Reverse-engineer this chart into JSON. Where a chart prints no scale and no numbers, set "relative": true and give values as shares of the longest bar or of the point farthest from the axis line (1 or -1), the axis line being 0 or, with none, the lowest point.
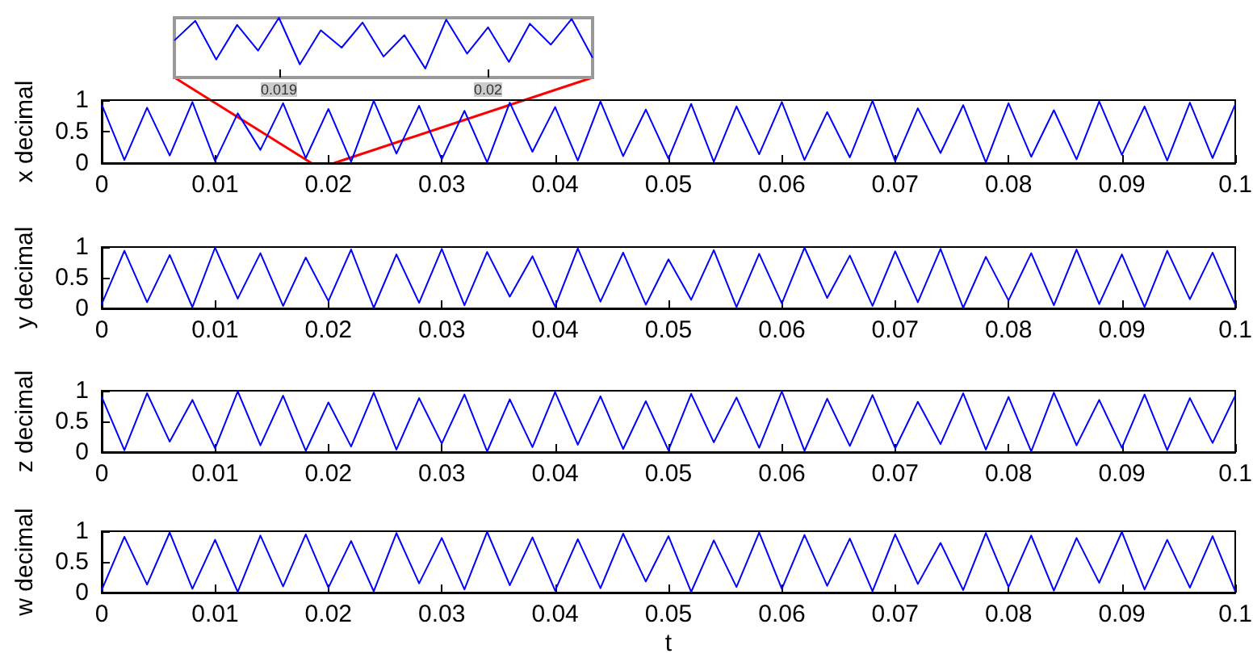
{
  "chart_data": [
    {
      "type": "line",
      "relative": true,
      "x": [
        0.0185,
        0.0186,
        0.0187,
        0.0188,
        0.0189,
        0.019,
        0.0191,
        0.0192,
        0.0193,
        0.0194,
        0.0195,
        0.0196,
        0.0197,
        0.0198,
        0.0199,
        0.02,
        0.0201,
        0.0202,
        0.0203,
        0.0204,
        0.0205
      ],
      "xlim": [
        0.0185,
        0.0205
      ],
      "xticks": [
        0.019,
        0.02
      ],
      "tick_labels": "x",
      "grid": false,
      "marker": "none",
      "line_style": "solid",
      "series": [
        {
          "color": "#0000ff",
          "values": [
            0.62,
            0.95,
            0.3,
            0.88,
            0.45,
            1,
            0.22,
            0.79,
            0.5,
            0.92,
            0.35,
            0.71,
            0.15,
            0.97,
            0.4,
            0.84,
            0.26,
            0.9,
            0.55,
            0.98,
            0.33
          ]
        }
      ]
    },
    {
      "type": "line",
      "ylabel": "x decimal",
      "x": [
        0,
        0.002,
        0.004,
        0.006,
        0.008,
        0.01,
        0.012,
        0.014,
        0.016,
        0.018,
        0.02,
        0.022,
        0.024,
        0.026,
        0.028,
        0.03,
        0.032,
        0.034,
        0.036,
        0.038,
        0.04,
        0.042,
        0.044,
        0.046,
        0.048,
        0.05,
        0.052,
        0.054,
        0.056,
        0.058,
        0.06,
        0.062,
        0.064,
        0.066,
        0.068,
        0.07,
        0.072,
        0.074,
        0.076,
        0.078,
        0.08,
        0.082,
        0.084,
        0.086,
        0.088,
        0.09,
        0.092,
        0.094,
        0.096,
        0.098,
        0.1
      ],
      "xlim": [
        0,
        0.1
      ],
      "xticks": [
        0,
        0.01,
        0.02,
        0.03,
        0.04,
        0.05,
        0.06,
        0.07,
        0.08,
        0.09,
        0.1
      ],
      "ylim": [
        0,
        1
      ],
      "yticks": [
        0,
        0.5,
        1
      ],
      "grid": false,
      "marker": "none",
      "line_style": "solid",
      "series": [
        {
          "color": "#0000ff",
          "values": [
            0.93,
            0.05,
            0.88,
            0.12,
            0.97,
            0.03,
            0.79,
            0.21,
            0.95,
            0.08,
            0.86,
            0.02,
            0.99,
            0.15,
            0.91,
            0.06,
            0.83,
            0.01,
            0.96,
            0.18,
            0.89,
            0.04,
            0.98,
            0.11,
            0.85,
            0.07,
            0.94,
            0.02,
            0.9,
            0.14,
            0.97,
            0.05,
            0.81,
            0.09,
            0.99,
            0.03,
            0.87,
            0.16,
            0.92,
            0.01,
            0.95,
            0.1,
            0.84,
            0.06,
            0.98,
            0.13,
            0.9,
            0.04,
            0.96,
            0.08,
            0.93
          ]
        }
      ]
    },
    {
      "type": "line",
      "ylabel": "y decimal",
      "x": [
        0,
        0.002,
        0.004,
        0.006,
        0.008,
        0.01,
        0.012,
        0.014,
        0.016,
        0.018,
        0.02,
        0.022,
        0.024,
        0.026,
        0.028,
        0.03,
        0.032,
        0.034,
        0.036,
        0.038,
        0.04,
        0.042,
        0.044,
        0.046,
        0.048,
        0.05,
        0.052,
        0.054,
        0.056,
        0.058,
        0.06,
        0.062,
        0.064,
        0.066,
        0.068,
        0.07,
        0.072,
        0.074,
        0.076,
        0.078,
        0.08,
        0.082,
        0.084,
        0.086,
        0.088,
        0.09,
        0.092,
        0.094,
        0.096,
        0.098,
        0.1
      ],
      "xlim": [
        0,
        0.1
      ],
      "xticks": [
        0,
        0.01,
        0.02,
        0.03,
        0.04,
        0.05,
        0.06,
        0.07,
        0.08,
        0.09,
        0.1
      ],
      "ylim": [
        0,
        1
      ],
      "yticks": [
        0,
        0.5,
        1
      ],
      "grid": false,
      "marker": "none",
      "line_style": "solid",
      "series": [
        {
          "color": "#0000ff",
          "values": [
            0.07,
            0.94,
            0.1,
            0.87,
            0.02,
            0.99,
            0.16,
            0.9,
            0.04,
            0.83,
            0.12,
            0.96,
            0.01,
            0.88,
            0.09,
            0.97,
            0.05,
            0.92,
            0.19,
            0.85,
            0.03,
            0.98,
            0.11,
            0.91,
            0.06,
            0.8,
            0.14,
            0.95,
            0.02,
            0.89,
            0.08,
            0.99,
            0.17,
            0.86,
            0.04,
            0.93,
            0.1,
            0.97,
            0.01,
            0.84,
            0.13,
            0.9,
            0.05,
            0.96,
            0.07,
            0.88,
            0.02,
            0.94,
            0.15,
            0.91,
            0.06
          ]
        }
      ]
    },
    {
      "type": "line",
      "ylabel": "z decimal",
      "x": [
        0,
        0.002,
        0.004,
        0.006,
        0.008,
        0.01,
        0.012,
        0.014,
        0.016,
        0.018,
        0.02,
        0.022,
        0.024,
        0.026,
        0.028,
        0.03,
        0.032,
        0.034,
        0.036,
        0.038,
        0.04,
        0.042,
        0.044,
        0.046,
        0.048,
        0.05,
        0.052,
        0.054,
        0.056,
        0.058,
        0.06,
        0.062,
        0.064,
        0.066,
        0.068,
        0.07,
        0.072,
        0.074,
        0.076,
        0.078,
        0.08,
        0.082,
        0.084,
        0.086,
        0.088,
        0.09,
        0.092,
        0.094,
        0.096,
        0.098,
        0.1
      ],
      "xlim": [
        0,
        0.1
      ],
      "xticks": [
        0,
        0.01,
        0.02,
        0.03,
        0.04,
        0.05,
        0.06,
        0.07,
        0.08,
        0.09,
        0.1
      ],
      "ylim": [
        0,
        1
      ],
      "yticks": [
        0,
        0.5,
        1
      ],
      "grid": false,
      "marker": "none",
      "line_style": "solid",
      "series": [
        {
          "color": "#0000ff",
          "values": [
            0.9,
            0.03,
            0.96,
            0.17,
            0.85,
            0.06,
            0.99,
            0.11,
            0.92,
            0.02,
            0.81,
            0.09,
            0.97,
            0.04,
            0.88,
            0.14,
            0.94,
            0.01,
            0.86,
            0.08,
            0.98,
            0.12,
            0.91,
            0.05,
            0.83,
            0.03,
            0.95,
            0.16,
            0.89,
            0.07,
            0.99,
            0.02,
            0.87,
            0.1,
            0.93,
            0.06,
            0.82,
            0.13,
            0.96,
            0.04,
            0.9,
            0.01,
            0.97,
            0.11,
            0.85,
            0.07,
            0.94,
            0.03,
            0.88,
            0.15,
            0.92
          ]
        }
      ]
    },
    {
      "type": "line",
      "ylabel": "w decimal",
      "xlabel": "t",
      "x": [
        0,
        0.002,
        0.004,
        0.006,
        0.008,
        0.01,
        0.012,
        0.014,
        0.016,
        0.018,
        0.02,
        0.022,
        0.024,
        0.026,
        0.028,
        0.03,
        0.032,
        0.034,
        0.036,
        0.038,
        0.04,
        0.042,
        0.044,
        0.046,
        0.048,
        0.05,
        0.052,
        0.054,
        0.056,
        0.058,
        0.06,
        0.062,
        0.064,
        0.066,
        0.068,
        0.07,
        0.072,
        0.074,
        0.076,
        0.078,
        0.08,
        0.082,
        0.084,
        0.086,
        0.088,
        0.09,
        0.092,
        0.094,
        0.096,
        0.098,
        0.1
      ],
      "xlim": [
        0,
        0.1
      ],
      "xticks": [
        0,
        0.01,
        0.02,
        0.03,
        0.04,
        0.05,
        0.06,
        0.07,
        0.08,
        0.09,
        0.1
      ],
      "ylim": [
        0,
        1
      ],
      "yticks": [
        0,
        0.5,
        1
      ],
      "grid": false,
      "marker": "none",
      "line_style": "solid",
      "series": [
        {
          "color": "#0000ff",
          "values": [
            0.04,
            0.91,
            0.13,
            0.98,
            0.06,
            0.86,
            0.01,
            0.93,
            0.1,
            0.95,
            0.08,
            0.84,
            0.02,
            0.97,
            0.15,
            0.89,
            0.05,
            0.99,
            0.12,
            0.9,
            0.03,
            0.87,
            0.07,
            0.96,
            0.18,
            0.92,
            0.01,
            0.85,
            0.09,
            0.98,
            0.06,
            0.94,
            0.11,
            0.88,
            0.02,
            0.95,
            0.14,
            0.81,
            0.04,
            0.97,
            0.09,
            0.93,
            0.03,
            0.89,
            0.16,
            0.99,
            0.05,
            0.86,
            0.08,
            0.92,
            0.02
          ]
        }
      ]
    }
  ]
}
